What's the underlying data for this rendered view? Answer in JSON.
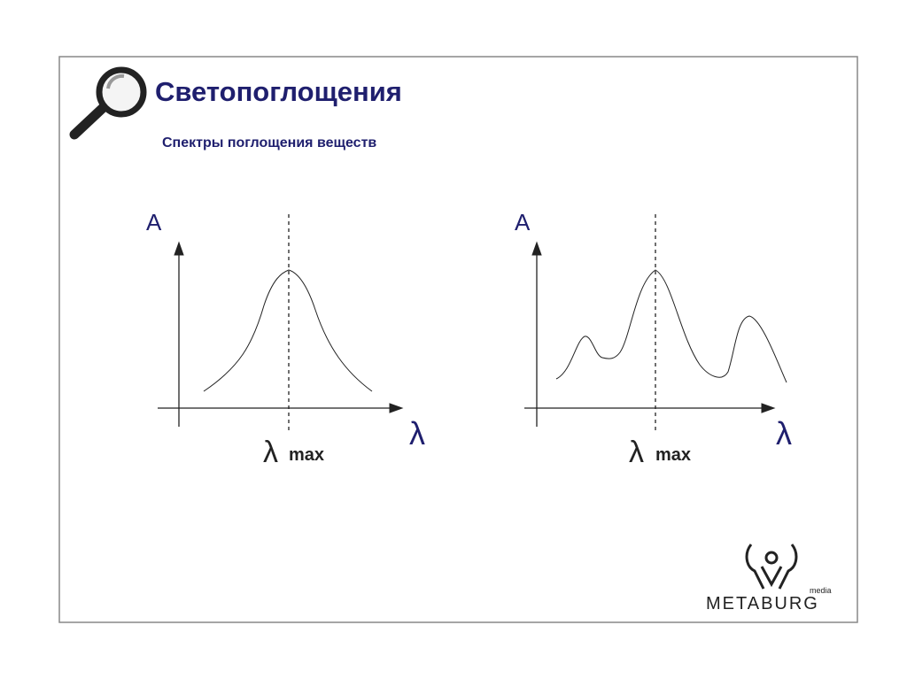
{
  "header": {
    "title": "Светопоглощения",
    "subtitle": "Спектры поглощения веществ"
  },
  "diagrams": [
    {
      "y_label": "A",
      "x_label": "λ",
      "marker": {
        "symbol": "λ",
        "suffix": "max"
      }
    },
    {
      "y_label": "A",
      "x_label": "λ",
      "marker": {
        "symbol": "λ",
        "suffix": "max"
      }
    }
  ],
  "logo": {
    "name": "METABURG",
    "tag": "media"
  }
}
